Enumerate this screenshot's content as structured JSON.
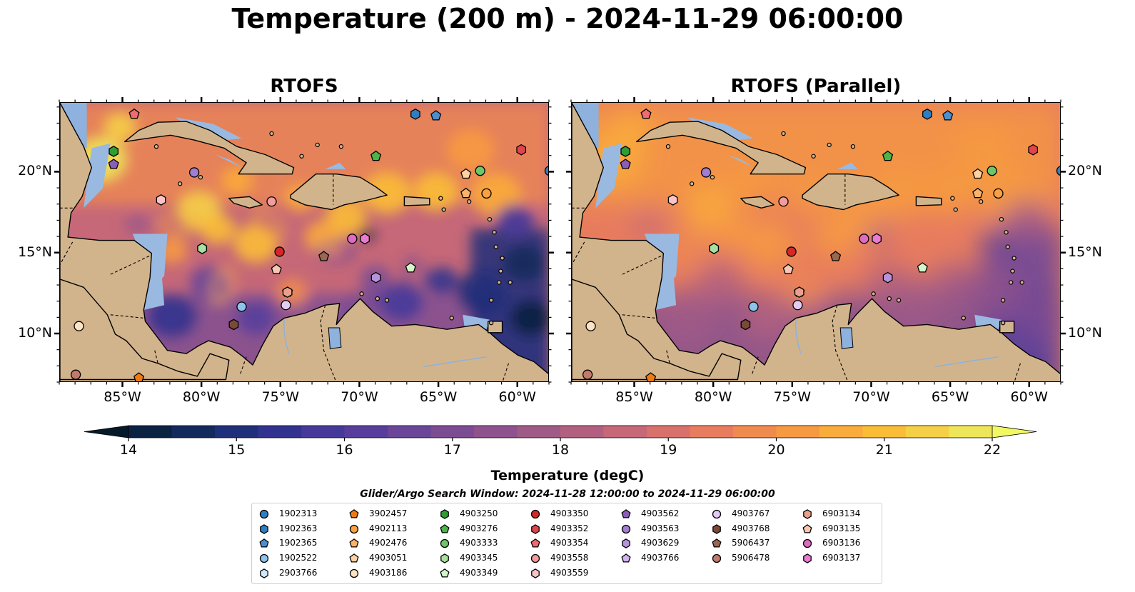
{
  "figure": {
    "title": "Temperature (200 m) - 2024-11-29 06:00:00"
  },
  "panels": [
    {
      "title": "RTOFS",
      "variant": "highres"
    },
    {
      "title": "RTOFS (Parallel)",
      "variant": "smooth"
    }
  ],
  "map_extent": {
    "lon": [
      -89,
      -58
    ],
    "lat": [
      7,
      24.3
    ]
  },
  "axes": {
    "lon_ticks": [
      {
        "value": -85,
        "label": "85°W"
      },
      {
        "value": -80,
        "label": "80°W"
      },
      {
        "value": -75,
        "label": "75°W"
      },
      {
        "value": -70,
        "label": "70°W"
      },
      {
        "value": -65,
        "label": "65°W"
      },
      {
        "value": -60,
        "label": "60°W"
      }
    ],
    "lat_ticks": [
      {
        "value": 20,
        "label": "20°N"
      },
      {
        "value": 15,
        "label": "15°N"
      },
      {
        "value": 10,
        "label": "10°N"
      }
    ]
  },
  "colorbar": {
    "label": "Temperature (degC)",
    "min": 14,
    "max": 22,
    "ticks": [
      "14",
      "15",
      "16",
      "17",
      "18",
      "19",
      "20",
      "21",
      "22"
    ],
    "colors": [
      "#0b2240",
      "#142a5c",
      "#202f7a",
      "#32338f",
      "#45399a",
      "#573e9c",
      "#6a4598",
      "#7c4c93",
      "#8e528d",
      "#a05a87",
      "#b36080",
      "#c66878",
      "#d8716c",
      "#e77c5f",
      "#f08b4f",
      "#f69a42",
      "#f9ab3b",
      "#fabd38",
      "#f5d047",
      "#eee65a"
    ],
    "under_color": "#041a2a",
    "over_color": "#f2f864"
  },
  "search_window": "Glider/Argo Search Window: 2024-11-28 12:00:00 to 2024-11-29 06:00:00",
  "platforms": [
    {
      "id": "1902313",
      "marker": "circle",
      "color": "#2f7fc0",
      "lon": -58.0,
      "lat": 20.1
    },
    {
      "id": "1902363",
      "marker": "hexagon",
      "color": "#2f7fc0",
      "lon": -66.5,
      "lat": 23.6
    },
    {
      "id": "1902365",
      "marker": "pentagon",
      "color": "#4c8fd0",
      "lon": -65.2,
      "lat": 23.5
    },
    {
      "id": "1902522",
      "marker": "circle",
      "color": "#8fc4ea",
      "lon": -77.5,
      "lat": 11.7
    },
    {
      "id": "2903766",
      "marker": "hexagon",
      "color": "#cfe8fb",
      "lon": -80.0,
      "lat": 15.3
    },
    {
      "id": "3902457",
      "marker": "pentagon",
      "color": "#ee7a12",
      "lon": -84.0,
      "lat": 7.3
    },
    {
      "id": "4902113",
      "marker": "circle",
      "color": "#f7a144",
      "lon": -62.0,
      "lat": 18.7
    },
    {
      "id": "4902476",
      "marker": "pentagon",
      "color": "#fbb36a",
      "lon": -63.3,
      "lat": 18.7
    },
    {
      "id": "4903051",
      "marker": "pentagon",
      "color": "#fcd2a2",
      "lon": -63.3,
      "lat": 19.9
    },
    {
      "id": "4903186",
      "marker": "circle",
      "color": "#fee2c4",
      "lon": -87.8,
      "lat": 10.5
    },
    {
      "id": "4903250",
      "marker": "hexagon",
      "color": "#2e9e34",
      "lon": -85.6,
      "lat": 21.3
    },
    {
      "id": "4903276",
      "marker": "pentagon",
      "color": "#4ab64a",
      "lon": -69.0,
      "lat": 21.0
    },
    {
      "id": "4903333",
      "marker": "circle",
      "color": "#6cc766",
      "lon": -62.4,
      "lat": 20.1
    },
    {
      "id": "4903345",
      "marker": "hexagon",
      "color": "#a8e0a0",
      "lon": -80.0,
      "lat": 15.3
    },
    {
      "id": "4903349",
      "marker": "pentagon",
      "color": "#d3f5c8",
      "lon": -66.8,
      "lat": 14.1
    },
    {
      "id": "4903350",
      "marker": "circle",
      "color": "#d62728",
      "lon": -75.1,
      "lat": 15.1
    },
    {
      "id": "4903352",
      "marker": "hexagon",
      "color": "#e0444c",
      "lon": -59.8,
      "lat": 21.4
    },
    {
      "id": "4903354",
      "marker": "pentagon",
      "color": "#ef6a72",
      "lon": -84.3,
      "lat": 23.6
    },
    {
      "id": "4903558",
      "marker": "circle",
      "color": "#f49b9c",
      "lon": -75.6,
      "lat": 18.2
    },
    {
      "id": "4903559",
      "marker": "hexagon",
      "color": "#f8c4c6",
      "lon": -82.6,
      "lat": 18.3
    },
    {
      "id": "4903562",
      "marker": "pentagon",
      "color": "#8a5db8",
      "lon": -85.6,
      "lat": 20.5
    },
    {
      "id": "4903563",
      "marker": "circle",
      "color": "#a27ed0",
      "lon": -80.5,
      "lat": 20.0
    },
    {
      "id": "4903629",
      "marker": "hexagon",
      "color": "#b793dd",
      "lon": -69.0,
      "lat": 13.5
    },
    {
      "id": "4903766",
      "marker": "pentagon",
      "color": "#d2b2ef",
      "lon": -74.6,
      "lat": 12.6
    },
    {
      "id": "4903767",
      "marker": "circle",
      "color": "#e2ccf6",
      "lon": -74.7,
      "lat": 11.8
    },
    {
      "id": "4903768",
      "marker": "hexagon",
      "color": "#7a4a36",
      "lon": -78.0,
      "lat": 10.6
    },
    {
      "id": "5906437",
      "marker": "pentagon",
      "color": "#9a6850",
      "lon": -72.3,
      "lat": 14.8
    },
    {
      "id": "5906478",
      "marker": "circle",
      "color": "#c07a6e",
      "lon": -88.0,
      "lat": 7.5
    },
    {
      "id": "6903134",
      "marker": "hexagon",
      "color": "#eba08c",
      "lon": -74.6,
      "lat": 12.6
    },
    {
      "id": "6903135",
      "marker": "pentagon",
      "color": "#f6c8b4",
      "lon": -75.3,
      "lat": 14.0
    },
    {
      "id": "6903136",
      "marker": "circle",
      "color": "#e06ac2",
      "lon": -70.5,
      "lat": 15.9
    },
    {
      "id": "6903137",
      "marker": "hexagon",
      "color": "#ea7ad2",
      "lon": -69.7,
      "lat": 15.9
    }
  ]
}
